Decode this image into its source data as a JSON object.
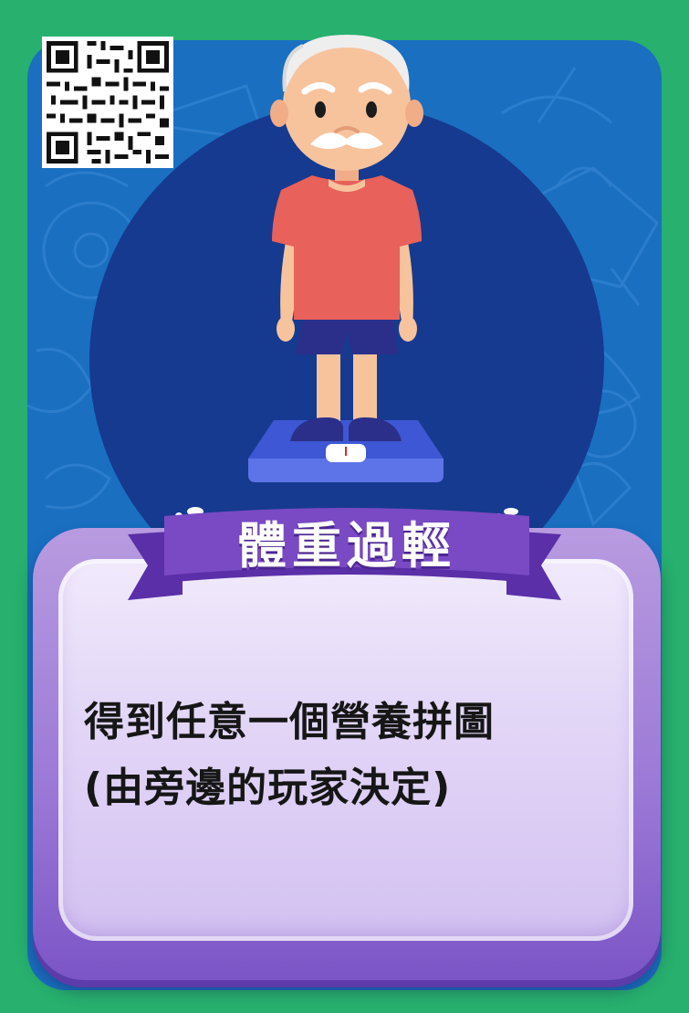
{
  "card": {
    "title": "體重過輕",
    "instruction_line1": "得到任意一個營養拼圖",
    "instruction_line2": "(由旁邊的玩家決定)"
  },
  "colors": {
    "border": "#27b06e",
    "card_background": "#1a6fc1",
    "circle": "#163a8f",
    "ribbon": "#7a49c4",
    "panel": "#b89be0"
  },
  "icons": {
    "qr": "qr-code-icon",
    "character": "elderly-man-illustration",
    "scale": "weighing-scale-icon"
  }
}
